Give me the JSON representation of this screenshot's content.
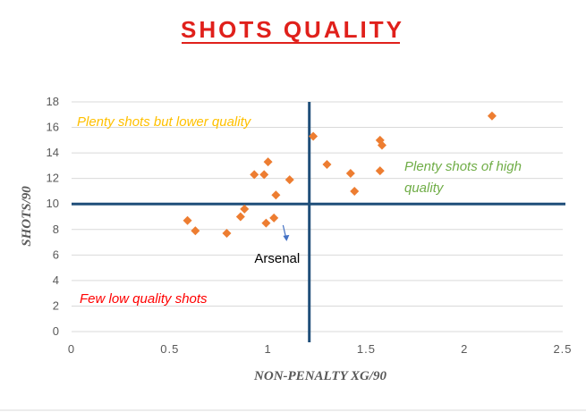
{
  "chart_data": {
    "type": "scatter",
    "title": "SHOTS QUALITY",
    "xlabel": "NON-PENALTY XG/90",
    "ylabel": "SHOTS/90",
    "xlim": [
      0,
      2.5
    ],
    "ylim": [
      0,
      18
    ],
    "xticks": [
      "0",
      "0.5",
      "1",
      "1.5",
      "2",
      "2.5"
    ],
    "yticks": [
      "0",
      "2",
      "4",
      "6",
      "8",
      "10",
      "12",
      "14",
      "16",
      "18"
    ],
    "grid": "horizontal",
    "reference_lines": {
      "x": 1.21,
      "y": 10
    },
    "quadrant_labels": {
      "top_left": "Plenty shots but lower quality",
      "top_right_line1": "Plenty shots of high",
      "top_right_line2": "quality",
      "bottom_left": "Few low quality shots"
    },
    "colors": {
      "points": "#ed7d31",
      "reference_lines": "#1f4e79",
      "title": "#e0201b",
      "top_left_label": "#ffc000",
      "top_right_label": "#70ad47",
      "bottom_left_label": "#ff0000",
      "arrow": "#4472c4"
    },
    "annotation": {
      "text": "Arsenal",
      "x": 1.04,
      "y": 8.9
    },
    "points": [
      {
        "x": 0.59,
        "y": 8.7
      },
      {
        "x": 0.63,
        "y": 7.9
      },
      {
        "x": 0.79,
        "y": 7.7
      },
      {
        "x": 0.86,
        "y": 9.0
      },
      {
        "x": 0.88,
        "y": 9.6
      },
      {
        "x": 0.93,
        "y": 12.3
      },
      {
        "x": 0.98,
        "y": 12.3
      },
      {
        "x": 1.0,
        "y": 13.3
      },
      {
        "x": 0.99,
        "y": 8.5
      },
      {
        "x": 1.03,
        "y": 8.9
      },
      {
        "x": 1.04,
        "y": 10.7
      },
      {
        "x": 1.11,
        "y": 11.9
      },
      {
        "x": 1.23,
        "y": 15.3
      },
      {
        "x": 1.3,
        "y": 13.1
      },
      {
        "x": 1.42,
        "y": 12.4
      },
      {
        "x": 1.44,
        "y": 11.0
      },
      {
        "x": 1.57,
        "y": 15.0
      },
      {
        "x": 1.58,
        "y": 14.6
      },
      {
        "x": 1.57,
        "y": 12.6
      },
      {
        "x": 2.14,
        "y": 16.9
      }
    ]
  }
}
